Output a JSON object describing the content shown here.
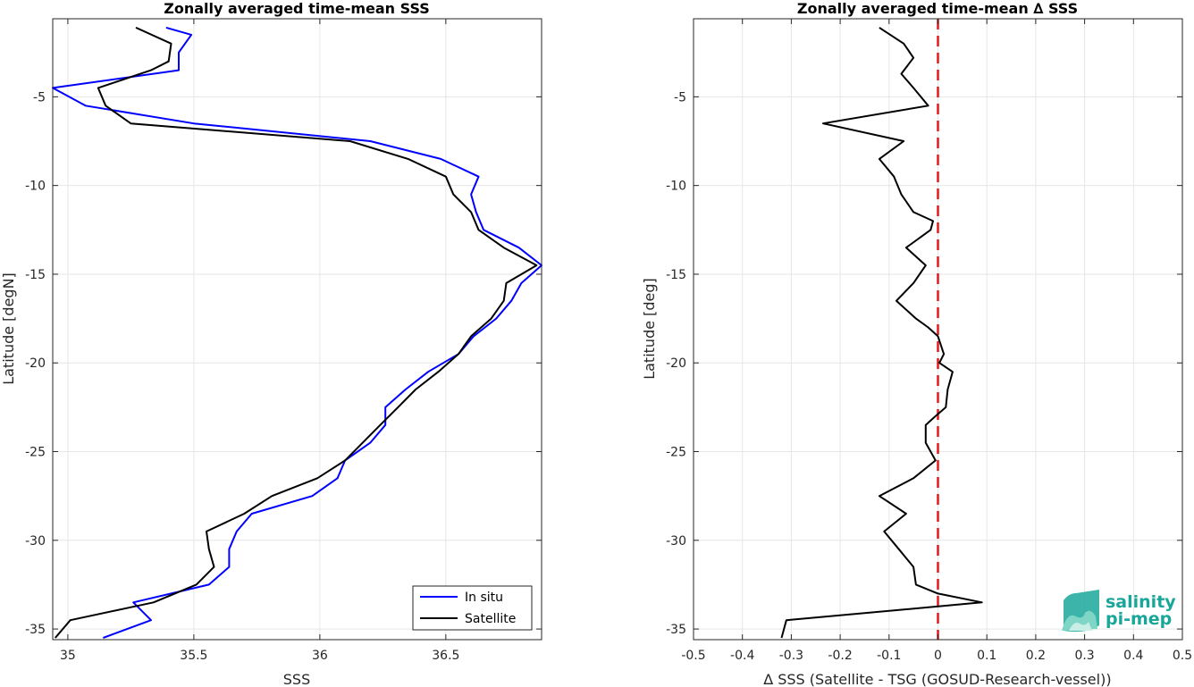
{
  "chart_data": [
    {
      "type": "line",
      "title": "Zonally averaged time-mean SSS",
      "xlabel": "SSS",
      "ylabel": "Latitude [degN]",
      "xlim": [
        34.94,
        36.88
      ],
      "ylim": [
        -35.6,
        -0.6
      ],
      "xticks": [
        35,
        35.5,
        36,
        36.5
      ],
      "xtick_labels": [
        "35",
        "35.5",
        "36",
        "36.5"
      ],
      "yticks": [
        -5,
        -10,
        -15,
        -20,
        -25,
        -30,
        -35
      ],
      "ytick_labels": [
        "-5",
        "-10",
        "-15",
        "-20",
        "-25",
        "-30",
        "-35"
      ],
      "grid": true,
      "legend_position": "bottom-right",
      "series": [
        {
          "name": "In situ",
          "color": "#0000ff",
          "points": [
            [
              35.39,
              -1.1
            ],
            [
              35.49,
              -1.5
            ],
            [
              35.44,
              -2.5
            ],
            [
              35.44,
              -3.5
            ],
            [
              34.94,
              -4.5
            ],
            [
              35.07,
              -5.5
            ],
            [
              35.5,
              -6.5
            ],
            [
              36.2,
              -7.5
            ],
            [
              36.48,
              -8.5
            ],
            [
              36.63,
              -9.5
            ],
            [
              36.6,
              -10.5
            ],
            [
              36.62,
              -11.5
            ],
            [
              36.65,
              -12.5
            ],
            [
              36.79,
              -13.5
            ],
            [
              36.88,
              -14.5
            ],
            [
              36.8,
              -15.5
            ],
            [
              36.76,
              -16.5
            ],
            [
              36.7,
              -17.5
            ],
            [
              36.61,
              -18.5
            ],
            [
              36.55,
              -19.5
            ],
            [
              36.43,
              -20.5
            ],
            [
              36.34,
              -21.5
            ],
            [
              36.26,
              -22.5
            ],
            [
              36.26,
              -23.5
            ],
            [
              36.2,
              -24.5
            ],
            [
              36.1,
              -25.5
            ],
            [
              36.07,
              -26.5
            ],
            [
              35.97,
              -27.5
            ],
            [
              35.73,
              -28.5
            ],
            [
              35.67,
              -29.5
            ],
            [
              35.64,
              -30.5
            ],
            [
              35.64,
              -31.5
            ],
            [
              35.56,
              -32.5
            ],
            [
              35.26,
              -33.5
            ],
            [
              35.33,
              -34.5
            ],
            [
              35.14,
              -35.5
            ]
          ]
        },
        {
          "name": "Satellite",
          "color": "#000000",
          "points": [
            [
              35.27,
              -1.1
            ],
            [
              35.41,
              -2.0
            ],
            [
              35.4,
              -3.0
            ],
            [
              35.33,
              -3.5
            ],
            [
              35.12,
              -4.5
            ],
            [
              35.15,
              -5.5
            ],
            [
              35.25,
              -6.5
            ],
            [
              36.12,
              -7.5
            ],
            [
              36.35,
              -8.5
            ],
            [
              36.5,
              -9.5
            ],
            [
              36.53,
              -10.5
            ],
            [
              36.6,
              -11.5
            ],
            [
              36.63,
              -12.5
            ],
            [
              36.73,
              -13.5
            ],
            [
              36.86,
              -14.5
            ],
            [
              36.74,
              -15.5
            ],
            [
              36.73,
              -16.5
            ],
            [
              36.68,
              -17.5
            ],
            [
              36.6,
              -18.5
            ],
            [
              36.55,
              -19.5
            ],
            [
              36.47,
              -20.5
            ],
            [
              36.38,
              -21.5
            ],
            [
              36.31,
              -22.5
            ],
            [
              36.24,
              -23.5
            ],
            [
              36.17,
              -24.5
            ],
            [
              36.1,
              -25.5
            ],
            [
              35.99,
              -26.5
            ],
            [
              35.81,
              -27.5
            ],
            [
              35.7,
              -28.5
            ],
            [
              35.55,
              -29.5
            ],
            [
              35.56,
              -30.5
            ],
            [
              35.58,
              -31.5
            ],
            [
              35.51,
              -32.5
            ],
            [
              35.34,
              -33.5
            ],
            [
              35.01,
              -34.5
            ],
            [
              34.95,
              -35.5
            ]
          ]
        }
      ]
    },
    {
      "type": "line",
      "title": "Zonally averaged time-mean ∆ SSS",
      "xlabel": "∆ SSS (Satellite - TSG (GOSUD-Research-vessel))",
      "ylabel": "Latitude [deg]",
      "xlim": [
        -0.5,
        0.5
      ],
      "ylim": [
        -35.6,
        -0.6
      ],
      "xticks": [
        -0.5,
        -0.4,
        -0.3,
        -0.2,
        -0.1,
        0,
        0.1,
        0.2,
        0.3,
        0.4,
        0.5
      ],
      "xtick_labels": [
        "-0.5",
        "-0.4",
        "-0.3",
        "-0.2",
        "-0.1",
        "0",
        "0.1",
        "0.2",
        "0.3",
        "0.4",
        "0.5"
      ],
      "yticks": [
        -5,
        -10,
        -15,
        -20,
        -25,
        -30,
        -35
      ],
      "ytick_labels": [
        "-5",
        "-10",
        "-15",
        "-20",
        "-25",
        "-30",
        "-35"
      ],
      "grid": true,
      "reference_line": {
        "x": 0,
        "color": "#e31a1c",
        "style": "dashed"
      },
      "series": [
        {
          "color": "#000000",
          "points": [
            [
              -0.12,
              -1.1
            ],
            [
              -0.07,
              -2.0
            ],
            [
              -0.05,
              -2.8
            ],
            [
              -0.075,
              -3.7
            ],
            [
              -0.05,
              -4.5
            ],
            [
              -0.035,
              -5.0
            ],
            [
              -0.02,
              -5.5
            ],
            [
              -0.235,
              -6.5
            ],
            [
              -0.07,
              -7.5
            ],
            [
              -0.12,
              -8.5
            ],
            [
              -0.09,
              -9.5
            ],
            [
              -0.075,
              -10.5
            ],
            [
              -0.05,
              -11.5
            ],
            [
              -0.01,
              -12.0
            ],
            [
              -0.015,
              -12.5
            ],
            [
              -0.065,
              -13.5
            ],
            [
              -0.025,
              -14.5
            ],
            [
              -0.05,
              -15.5
            ],
            [
              -0.085,
              -16.5
            ],
            [
              -0.045,
              -17.5
            ],
            [
              -0.02,
              -18.0
            ],
            [
              0.0,
              -18.5
            ],
            [
              0.012,
              -19.5
            ],
            [
              0.003,
              -20.0
            ],
            [
              0.03,
              -20.5
            ],
            [
              0.02,
              -21.5
            ],
            [
              0.016,
              -22.5
            ],
            [
              -0.005,
              -23.0
            ],
            [
              -0.025,
              -23.5
            ],
            [
              -0.025,
              -24.5
            ],
            [
              -0.005,
              -25.5
            ],
            [
              -0.05,
              -26.5
            ],
            [
              -0.12,
              -27.5
            ],
            [
              -0.065,
              -28.5
            ],
            [
              -0.11,
              -29.5
            ],
            [
              -0.08,
              -30.5
            ],
            [
              -0.05,
              -31.5
            ],
            [
              -0.045,
              -32.5
            ],
            [
              0.0,
              -33.0
            ],
            [
              0.09,
              -33.5
            ],
            [
              -0.31,
              -34.5
            ],
            [
              -0.32,
              -35.5
            ]
          ]
        }
      ]
    }
  ],
  "legend": {
    "items": [
      "In situ",
      "Satellite"
    ]
  },
  "logo": {
    "line1": "salinity",
    "line2": "pi-mep"
  }
}
